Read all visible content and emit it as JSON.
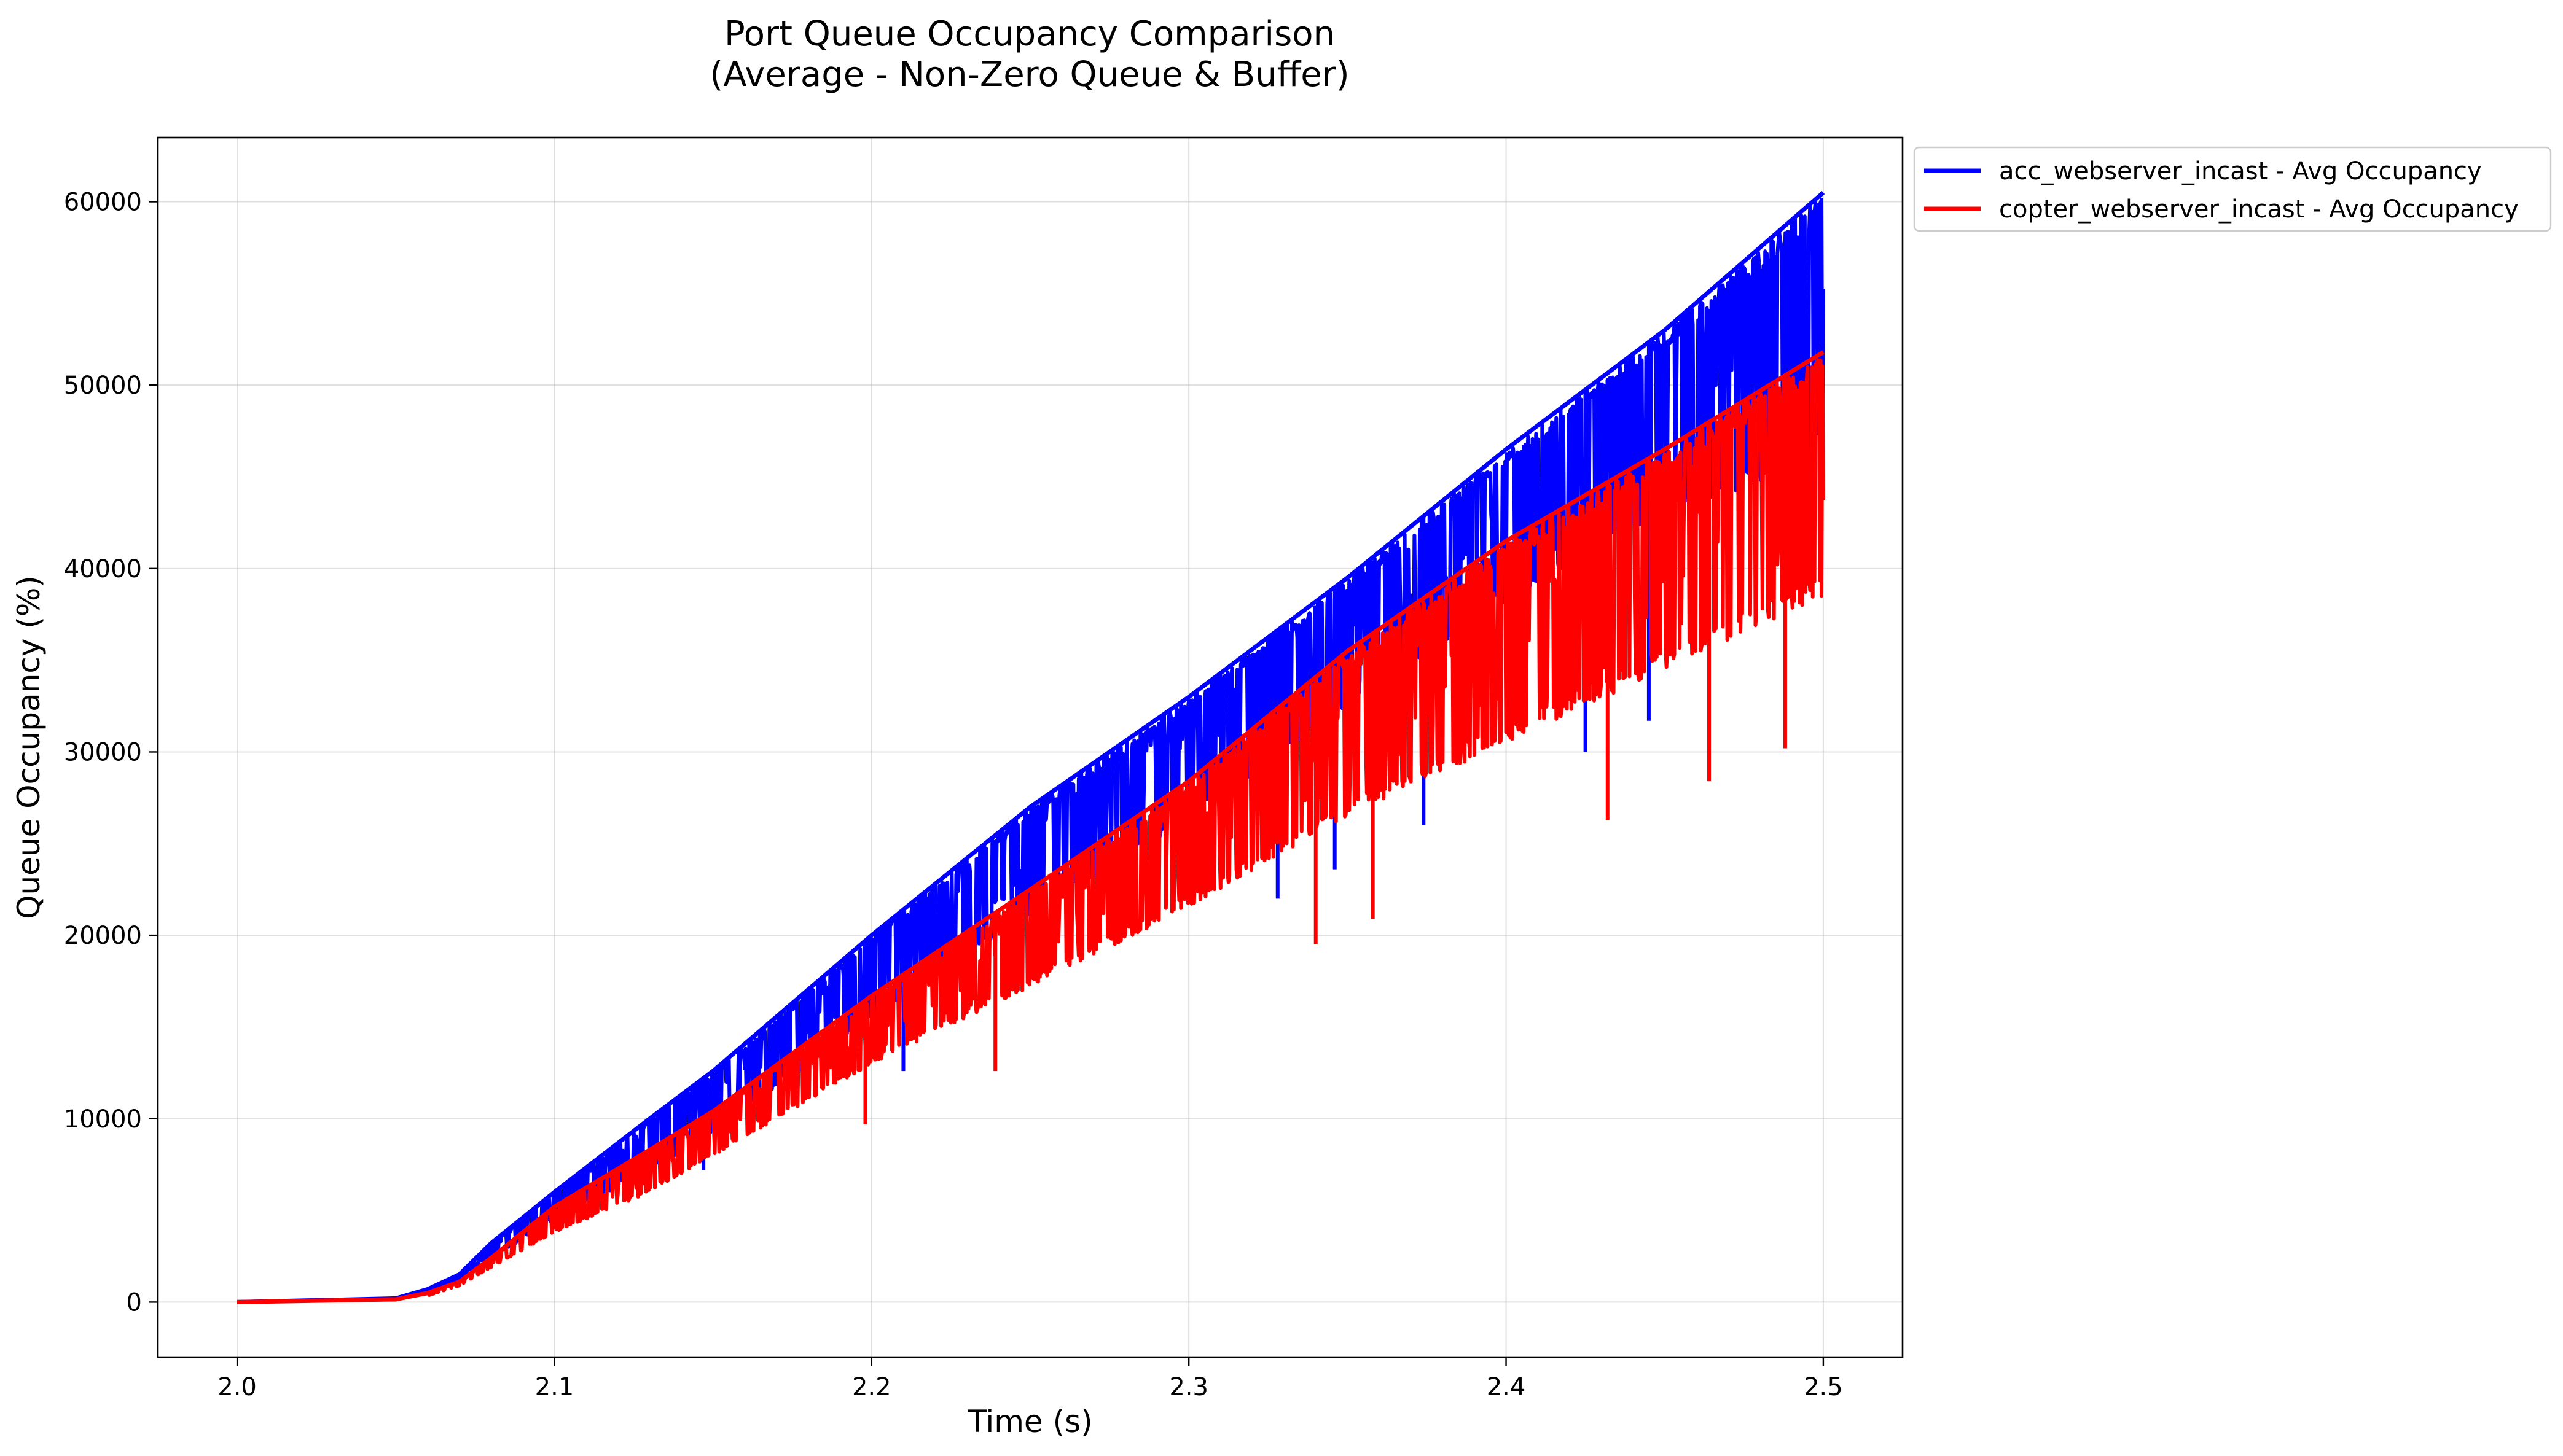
{
  "chart_data": {
    "type": "line",
    "title": "Port Queue Occupancy Comparison",
    "subtitle": "(Average - Non-Zero Queue & Buffer)",
    "xlabel": "Time (s)",
    "ylabel": "Queue Occupancy (%)",
    "xlim": [
      1.975,
      2.525
    ],
    "ylim": [
      -3000,
      63500
    ],
    "x_ticks": [
      2.0,
      2.1,
      2.2,
      2.3,
      2.4,
      2.5
    ],
    "x_tick_labels": [
      "2.0",
      "2.1",
      "2.2",
      "2.3",
      "2.4",
      "2.5"
    ],
    "y_ticks": [
      0,
      10000,
      20000,
      30000,
      40000,
      50000,
      60000
    ],
    "y_tick_labels": [
      "0",
      "10000",
      "20000",
      "30000",
      "40000",
      "50000",
      "60000"
    ],
    "grid": true,
    "legend_position": "outside-top-right",
    "series": [
      {
        "name": "acc_webserver_incast - Avg Occupancy",
        "color": "#0000ff",
        "upper_envelope": {
          "x": [
            2.0,
            2.05,
            2.06,
            2.07,
            2.08,
            2.1,
            2.13,
            2.15,
            2.2,
            2.25,
            2.3,
            2.35,
            2.4,
            2.45,
            2.5
          ],
          "y": [
            0,
            200,
            700,
            1500,
            3200,
            6000,
            10000,
            12600,
            20000,
            27000,
            33000,
            39500,
            46500,
            53000,
            60500
          ]
        },
        "lower_envelope": {
          "x": [
            2.0,
            2.05,
            2.06,
            2.07,
            2.08,
            2.1,
            2.13,
            2.15,
            2.2,
            2.25,
            2.3,
            2.35,
            2.4,
            2.45,
            2.5
          ],
          "y": [
            0,
            150,
            500,
            1100,
            2400,
            4500,
            7200,
            9200,
            15500,
            21200,
            26300,
            32500,
            38200,
            43200,
            45500
          ]
        },
        "dips": [
          {
            "x": 2.147,
            "y": 7200
          },
          {
            "x": 2.21,
            "y": 12600
          },
          {
            "x": 2.328,
            "y": 22000
          },
          {
            "x": 2.346,
            "y": 23600
          },
          {
            "x": 2.374,
            "y": 26000
          },
          {
            "x": 2.425,
            "y": 30000
          },
          {
            "x": 2.445,
            "y": 31700
          }
        ]
      },
      {
        "name": "copter_webserver_incast - Avg Occupancy",
        "color": "#ff0000",
        "upper_envelope": {
          "x": [
            2.0,
            2.05,
            2.06,
            2.07,
            2.08,
            2.1,
            2.13,
            2.15,
            2.2,
            2.25,
            2.3,
            2.35,
            2.4,
            2.45,
            2.5
          ],
          "y": [
            0,
            150,
            500,
            1100,
            2400,
            5200,
            8300,
            10400,
            16700,
            22500,
            28400,
            35500,
            41500,
            46500,
            51800
          ]
        },
        "lower_envelope": {
          "x": [
            2.0,
            2.05,
            2.06,
            2.07,
            2.08,
            2.1,
            2.13,
            2.15,
            2.2,
            2.25,
            2.3,
            2.35,
            2.4,
            2.45,
            2.5
          ],
          "y": [
            0,
            100,
            350,
            900,
            1900,
            3800,
            6000,
            8000,
            13000,
            17200,
            21500,
            26500,
            30500,
            34500,
            38500
          ]
        },
        "dips": [
          {
            "x": 2.198,
            "y": 9700
          },
          {
            "x": 2.239,
            "y": 12600
          },
          {
            "x": 2.34,
            "y": 19500
          },
          {
            "x": 2.358,
            "y": 20900
          },
          {
            "x": 2.432,
            "y": 26300
          },
          {
            "x": 2.464,
            "y": 28400
          },
          {
            "x": 2.488,
            "y": 30200
          }
        ]
      }
    ]
  }
}
